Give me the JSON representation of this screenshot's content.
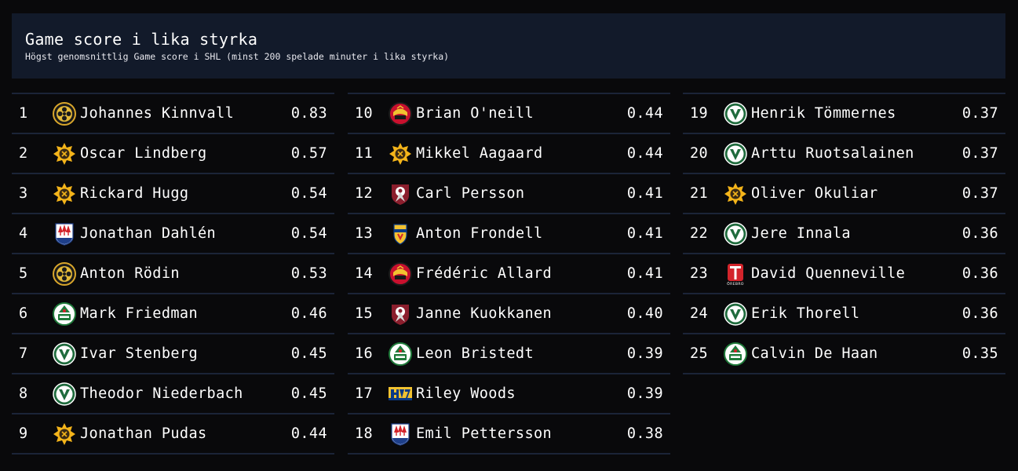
{
  "header": {
    "title": "Game score i lika styrka",
    "subtitle": "Högst genomsnittlig Game score i SHL (minst 200 spelade minuter i lika styrka)"
  },
  "chart_data": {
    "type": "table",
    "title": "Game score i lika styrka",
    "subtitle": "Högst genomsnittlig Game score i SHL (minst 200 spelade minuter i lika styrka)",
    "rows": [
      {
        "rank": "1",
        "name": "Johannes Kinnvall",
        "value": "0.83",
        "logo": "skelleftea-logo"
      },
      {
        "rank": "2",
        "name": "Oscar Lindberg",
        "value": "0.57",
        "logo": "lulea-logo"
      },
      {
        "rank": "3",
        "name": "Rickard Hugg",
        "value": "0.54",
        "logo": "lulea-logo"
      },
      {
        "rank": "4",
        "name": "Jonathan Dahlén",
        "value": "0.54",
        "logo": "timra-logo"
      },
      {
        "rank": "5",
        "name": "Anton Rödin",
        "value": "0.53",
        "logo": "skelleftea-logo"
      },
      {
        "rank": "6",
        "name": "Mark Friedman",
        "value": "0.46",
        "logo": "rogle-logo"
      },
      {
        "rank": "7",
        "name": "Ivar Stenberg",
        "value": "0.45",
        "logo": "frolunda-logo"
      },
      {
        "rank": "8",
        "name": "Theodor Niederbach",
        "value": "0.45",
        "logo": "frolunda-logo"
      },
      {
        "rank": "9",
        "name": "Jonathan Pudas",
        "value": "0.44",
        "logo": "lulea-logo"
      },
      {
        "rank": "10",
        "name": "Brian O'neill",
        "value": "0.44",
        "logo": "brynas-logo"
      },
      {
        "rank": "11",
        "name": "Mikkel Aagaard",
        "value": "0.44",
        "logo": "lulea-logo"
      },
      {
        "rank": "12",
        "name": "Carl Persson",
        "value": "0.41",
        "logo": "modo-logo"
      },
      {
        "rank": "13",
        "name": "Anton Frondell",
        "value": "0.41",
        "logo": "djurgarden-logo"
      },
      {
        "rank": "14",
        "name": "Frédéric Allard",
        "value": "0.41",
        "logo": "brynas-logo"
      },
      {
        "rank": "15",
        "name": "Janne Kuokkanen",
        "value": "0.40",
        "logo": "modo-logo"
      },
      {
        "rank": "16",
        "name": "Leon Bristedt",
        "value": "0.39",
        "logo": "rogle-logo"
      },
      {
        "rank": "17",
        "name": "Riley Woods",
        "value": "0.39",
        "logo": "hv71-logo"
      },
      {
        "rank": "18",
        "name": "Emil Pettersson",
        "value": "0.38",
        "logo": "timra-logo"
      },
      {
        "rank": "19",
        "name": "Henrik Tömmernes",
        "value": "0.37",
        "logo": "frolunda-logo"
      },
      {
        "rank": "20",
        "name": "Arttu Ruotsalainen",
        "value": "0.37",
        "logo": "frolunda-logo"
      },
      {
        "rank": "21",
        "name": "Oliver Okuliar",
        "value": "0.37",
        "logo": "lulea-logo"
      },
      {
        "rank": "22",
        "name": "Jere Innala",
        "value": "0.36",
        "logo": "frolunda-logo"
      },
      {
        "rank": "23",
        "name": "David Quenneville",
        "value": "0.36",
        "logo": "orebro-logo"
      },
      {
        "rank": "24",
        "name": "Erik Thorell",
        "value": "0.36",
        "logo": "frolunda-logo"
      },
      {
        "rank": "25",
        "name": "Calvin De Haan",
        "value": "0.35",
        "logo": "rogle-logo"
      }
    ]
  },
  "colors": {
    "background": "#09090b",
    "header_bg": "#121a2a",
    "divider": "#1b2438",
    "text": "#ffffff"
  }
}
